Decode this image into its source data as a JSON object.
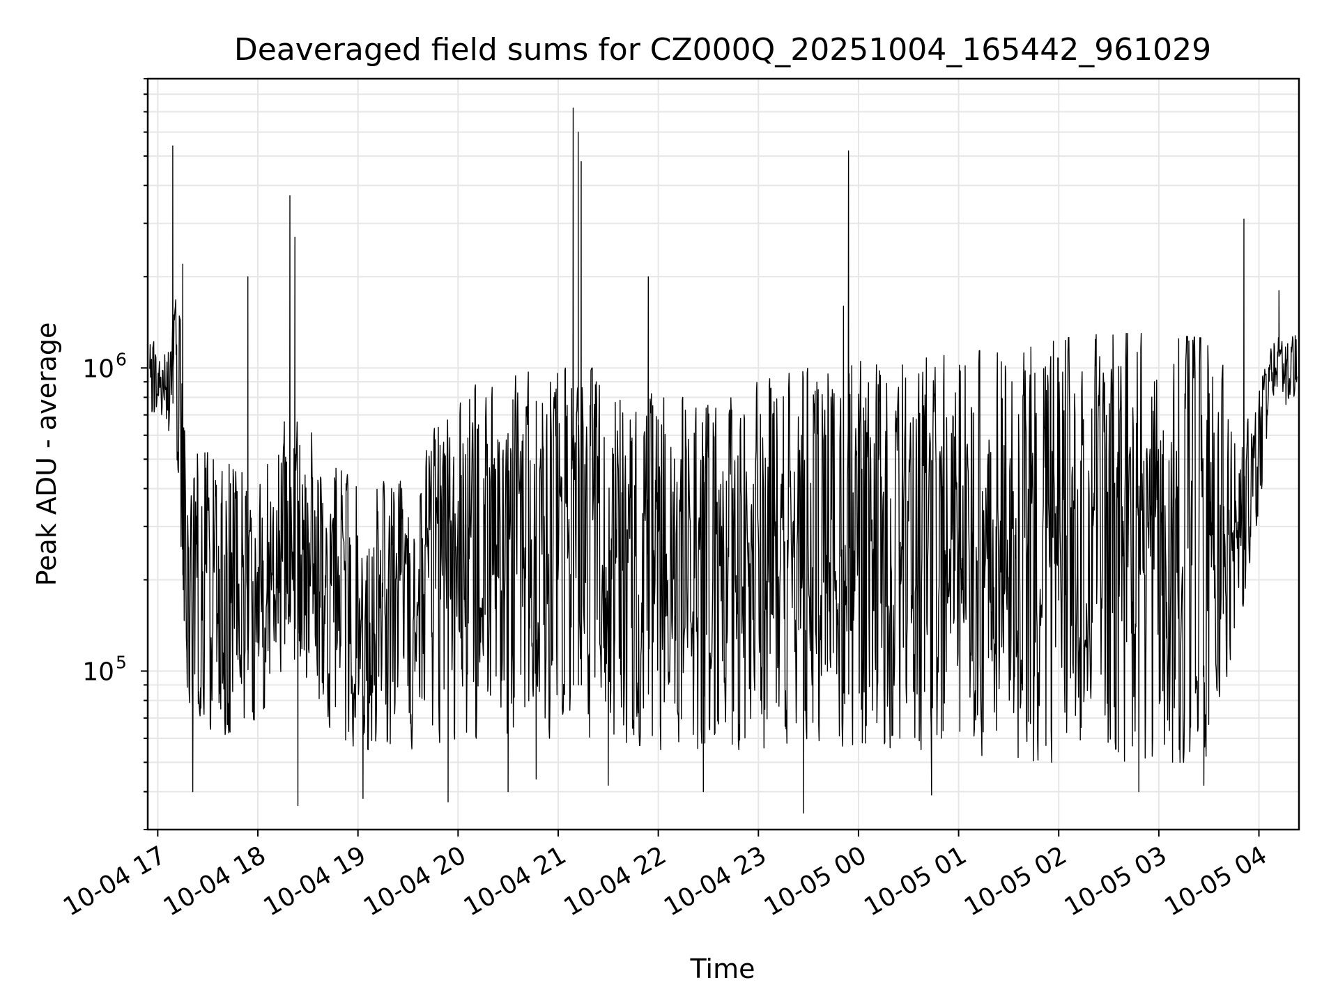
{
  "chart_data": {
    "type": "line",
    "title": "Deaveraged field sums for CZ000Q_20251004_165442_961029",
    "xlabel": "Time",
    "ylabel": "Peak ADU - average",
    "yscale": "log",
    "ylim": [
      30000,
      9000000
    ],
    "xlim_hours": [
      16.9,
      28.4
    ],
    "grid": true,
    "line_color": "#000000",
    "grid_color": "#e6e6e6",
    "x_ticks": [
      {
        "hour": 17,
        "label": "10-04 17"
      },
      {
        "hour": 18,
        "label": "10-04 18"
      },
      {
        "hour": 19,
        "label": "10-04 19"
      },
      {
        "hour": 20,
        "label": "10-04 20"
      },
      {
        "hour": 21,
        "label": "10-04 21"
      },
      {
        "hour": 22,
        "label": "10-04 22"
      },
      {
        "hour": 23,
        "label": "10-04 23"
      },
      {
        "hour": 24,
        "label": "10-05 00"
      },
      {
        "hour": 25,
        "label": "10-05 01"
      },
      {
        "hour": 26,
        "label": "10-05 02"
      },
      {
        "hour": 27,
        "label": "10-05 03"
      },
      {
        "hour": 28,
        "label": "10-05 04"
      }
    ],
    "y_ticks": [
      {
        "value": 100000,
        "base": "10",
        "exp": "5"
      },
      {
        "value": 1000000,
        "base": "10",
        "exp": "6"
      }
    ],
    "series": [
      {
        "name": "Peak ADU - average",
        "envelope": [
          {
            "h": 16.92,
            "lo": 700000,
            "hi": 1200000
          },
          {
            "h": 17.1,
            "lo": 650000,
            "hi": 1300000
          },
          {
            "h": 17.2,
            "lo": 400000,
            "hi": 2000000
          },
          {
            "h": 17.3,
            "lo": 80000,
            "hi": 600000
          },
          {
            "h": 17.6,
            "lo": 60000,
            "hi": 500000
          },
          {
            "h": 18.0,
            "lo": 70000,
            "hi": 450000
          },
          {
            "h": 18.3,
            "lo": 100000,
            "hi": 700000
          },
          {
            "h": 18.6,
            "lo": 70000,
            "hi": 600000
          },
          {
            "h": 19.0,
            "lo": 55000,
            "hi": 400000
          },
          {
            "h": 19.5,
            "lo": 55000,
            "hi": 450000
          },
          {
            "h": 20.0,
            "lo": 60000,
            "hi": 900000
          },
          {
            "h": 20.5,
            "lo": 60000,
            "hi": 950000
          },
          {
            "h": 21.0,
            "lo": 60000,
            "hi": 1000000
          },
          {
            "h": 21.5,
            "lo": 60000,
            "hi": 1000000
          },
          {
            "h": 22.0,
            "lo": 55000,
            "hi": 800000
          },
          {
            "h": 22.5,
            "lo": 55000,
            "hi": 800000
          },
          {
            "h": 23.0,
            "lo": 55000,
            "hi": 900000
          },
          {
            "h": 23.5,
            "lo": 60000,
            "hi": 1000000
          },
          {
            "h": 24.0,
            "lo": 55000,
            "hi": 1050000
          },
          {
            "h": 24.5,
            "lo": 55000,
            "hi": 1100000
          },
          {
            "h": 25.0,
            "lo": 55000,
            "hi": 1100000
          },
          {
            "h": 25.5,
            "lo": 50000,
            "hi": 1200000
          },
          {
            "h": 26.0,
            "lo": 50000,
            "hi": 1250000
          },
          {
            "h": 26.5,
            "lo": 50000,
            "hi": 1300000
          },
          {
            "h": 27.0,
            "lo": 50000,
            "hi": 1300000
          },
          {
            "h": 27.5,
            "lo": 50000,
            "hi": 1250000
          },
          {
            "h": 27.9,
            "lo": 200000,
            "hi": 700000
          },
          {
            "h": 28.15,
            "lo": 750000,
            "hi": 1300000
          },
          {
            "h": 28.4,
            "lo": 750000,
            "hi": 1300000
          }
        ],
        "spikes": [
          {
            "h": 17.15,
            "v": 5400000
          },
          {
            "h": 17.25,
            "v": 2200000
          },
          {
            "h": 17.35,
            "v": 40000
          },
          {
            "h": 17.9,
            "v": 2000000
          },
          {
            "h": 18.32,
            "v": 3700000
          },
          {
            "h": 18.37,
            "v": 2700000
          },
          {
            "h": 18.4,
            "v": 36000
          },
          {
            "h": 19.05,
            "v": 38000
          },
          {
            "h": 19.9,
            "v": 37000
          },
          {
            "h": 20.5,
            "v": 40000
          },
          {
            "h": 20.78,
            "v": 44000
          },
          {
            "h": 21.15,
            "v": 7200000
          },
          {
            "h": 21.2,
            "v": 6000000
          },
          {
            "h": 21.23,
            "v": 4800000
          },
          {
            "h": 21.5,
            "v": 42000
          },
          {
            "h": 21.9,
            "v": 2000000
          },
          {
            "h": 22.45,
            "v": 40000
          },
          {
            "h": 23.45,
            "v": 34000
          },
          {
            "h": 23.85,
            "v": 1600000
          },
          {
            "h": 23.9,
            "v": 5200000
          },
          {
            "h": 24.73,
            "v": 39000
          },
          {
            "h": 26.8,
            "v": 40000
          },
          {
            "h": 27.45,
            "v": 42000
          },
          {
            "h": 27.85,
            "v": 3100000
          },
          {
            "h": 28.2,
            "v": 1800000
          }
        ]
      }
    ]
  }
}
